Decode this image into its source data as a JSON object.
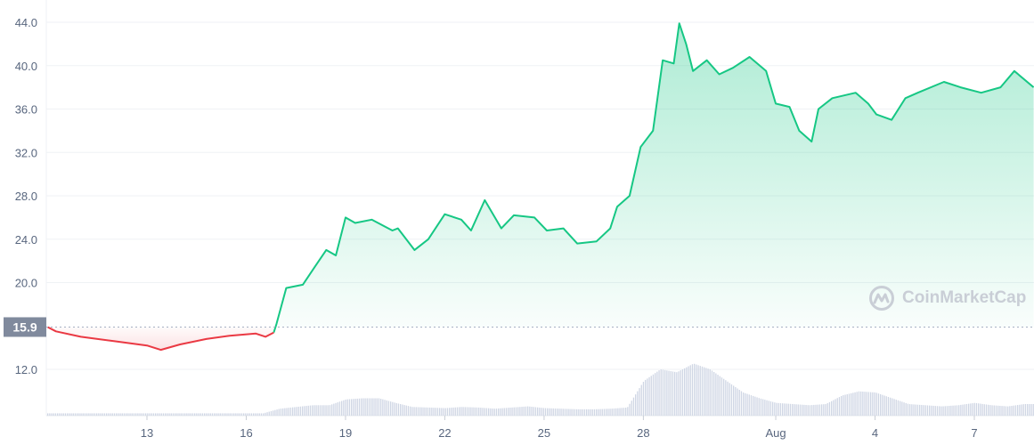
{
  "chart_data": {
    "type": "line",
    "title": "",
    "xlabel": "",
    "ylabel": "",
    "ylim": [
      9,
      45
    ],
    "y_ticks": [
      "44.0",
      "40.0",
      "36.0",
      "32.0",
      "28.0",
      "24.0",
      "20.0",
      "12.0"
    ],
    "x_ticks": [
      {
        "label": "13",
        "date": "07-13"
      },
      {
        "label": "16",
        "date": "07-16"
      },
      {
        "label": "19",
        "date": "07-19"
      },
      {
        "label": "22",
        "date": "07-22"
      },
      {
        "label": "25",
        "date": "07-25"
      },
      {
        "label": "28",
        "date": "07-28"
      },
      {
        "label": "Aug",
        "date": "08-01"
      },
      {
        "label": "4",
        "date": "08-04"
      },
      {
        "label": "7",
        "date": "08-07"
      }
    ],
    "reference_price": {
      "label": "15.9",
      "value": 15.9
    },
    "grid": true,
    "colors": {
      "up": "#16c784",
      "down": "#ea3943",
      "grid": "#eff2f5",
      "label_bg": "#808a9d",
      "volume": "#cfd6e4"
    },
    "price": [
      [
        "07-10 00:00",
        15.9
      ],
      [
        "07-10 06:00",
        15.5
      ],
      [
        "07-11 00:00",
        15.0
      ],
      [
        "07-12 00:00",
        14.6
      ],
      [
        "07-13 00:00",
        14.2
      ],
      [
        "07-13 10:00",
        13.8
      ],
      [
        "07-14 00:00",
        14.3
      ],
      [
        "07-14 19:00",
        14.8
      ],
      [
        "07-15 12:00",
        15.1
      ],
      [
        "07-16 07:00",
        15.3
      ],
      [
        "07-16 14:00",
        15.0
      ],
      [
        "07-16 20:00",
        15.4
      ],
      [
        "07-16 22:00",
        16.2
      ],
      [
        "07-17 05:00",
        19.5
      ],
      [
        "07-17 17:00",
        19.8
      ],
      [
        "07-18 02:00",
        21.5
      ],
      [
        "07-18 10:00",
        23.0
      ],
      [
        "07-18 17:00",
        22.5
      ],
      [
        "07-19 00:00",
        26.0
      ],
      [
        "07-19 07:00",
        25.5
      ],
      [
        "07-19 19:00",
        25.8
      ],
      [
        "07-20 10:00",
        24.8
      ],
      [
        "07-20 14:00",
        25.0
      ],
      [
        "07-21 02:00",
        23.0
      ],
      [
        "07-21 12:00",
        24.0
      ],
      [
        "07-22 00:00",
        26.3
      ],
      [
        "07-22 12:00",
        25.8
      ],
      [
        "07-22 19:00",
        24.8
      ],
      [
        "07-23 05:00",
        27.6
      ],
      [
        "07-23 17:00",
        25.0
      ],
      [
        "07-24 02:00",
        26.2
      ],
      [
        "07-24 17:00",
        26.0
      ],
      [
        "07-25 02:00",
        24.8
      ],
      [
        "07-25 14:00",
        25.0
      ],
      [
        "07-26 00:00",
        23.6
      ],
      [
        "07-26 14:00",
        23.8
      ],
      [
        "07-27 00:00",
        25.0
      ],
      [
        "07-27 05:00",
        27.0
      ],
      [
        "07-27 14:00",
        28.0
      ],
      [
        "07-27 22:00",
        32.5
      ],
      [
        "07-28 07:00",
        34.0
      ],
      [
        "07-28 14:00",
        40.5
      ],
      [
        "07-28 22:00",
        40.2
      ],
      [
        "07-29 02:00",
        43.9
      ],
      [
        "07-29 07:00",
        42.0
      ],
      [
        "07-29 12:00",
        39.5
      ],
      [
        "07-29 22:00",
        40.5
      ],
      [
        "07-30 07:00",
        39.2
      ],
      [
        "07-30 17:00",
        39.8
      ],
      [
        "07-31 05:00",
        40.8
      ],
      [
        "07-31 17:00",
        39.5
      ],
      [
        "08-01 00:00",
        36.5
      ],
      [
        "08-01 10:00",
        36.2
      ],
      [
        "08-01 17:00",
        34.0
      ],
      [
        "08-02 02:00",
        33.0
      ],
      [
        "08-02 07:00",
        36.0
      ],
      [
        "08-02 17:00",
        37.0
      ],
      [
        "08-03 10:00",
        37.5
      ],
      [
        "08-03 19:00",
        36.5
      ],
      [
        "08-04 01:00",
        35.5
      ],
      [
        "08-04 12:00",
        35.0
      ],
      [
        "08-04 22:00",
        37.0
      ],
      [
        "08-05 07:00",
        37.5
      ],
      [
        "08-06 02:00",
        38.5
      ],
      [
        "08-06 14:00",
        38.0
      ],
      [
        "08-07 05:00",
        37.5
      ],
      [
        "08-07 19:00",
        38.0
      ],
      [
        "08-08 05:00",
        39.5
      ],
      [
        "08-08 19:00",
        38.0
      ]
    ],
    "volume_relative": {
      "start": "07-10 00:00",
      "step_hours": 12,
      "values": [
        4,
        4,
        4,
        4,
        4,
        4,
        4,
        4,
        4,
        4,
        4,
        4,
        4,
        4,
        12,
        15,
        18,
        18,
        28,
        30,
        30,
        22,
        15,
        14,
        13,
        15,
        14,
        12,
        14,
        16,
        13,
        12,
        11,
        11,
        12,
        14,
        60,
        80,
        75,
        90,
        80,
        60,
        40,
        30,
        22,
        20,
        18,
        20,
        35,
        42,
        40,
        30,
        20,
        18,
        16,
        18,
        22,
        18,
        16,
        20
      ]
    }
  },
  "watermark": {
    "text": "CoinMarketCap"
  }
}
